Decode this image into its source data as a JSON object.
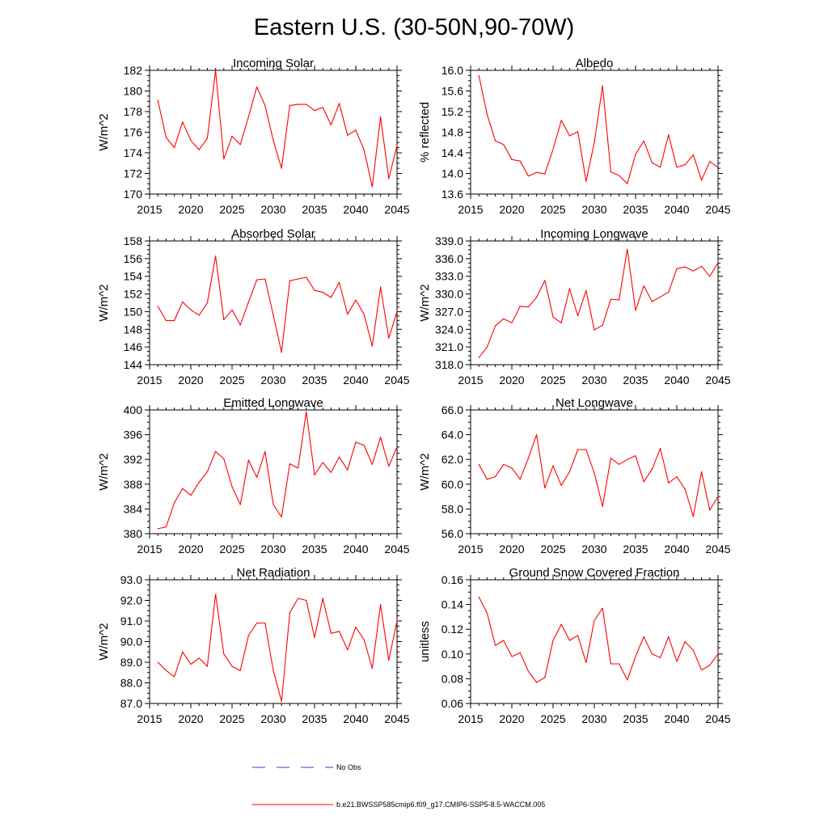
{
  "figure_title": "Eastern U.S. (30-50N,90-70W)",
  "legend": {
    "obs_label": "No Obs",
    "obs_color": "#3a3ad6",
    "model_label": "b.e21.BWSSP585cmip6.f09_g17.CMIP6-SSP5-8.5-WACCM.005",
    "model_color": "#ff0000"
  },
  "chart_data": [
    {
      "type": "line",
      "title": "Incoming Solar",
      "xlabel": "",
      "ylabel": "W/m^2",
      "xlim": [
        2015,
        2045
      ],
      "ylim": [
        170,
        182
      ],
      "xticks": [
        2015,
        2020,
        2025,
        2030,
        2035,
        2040,
        2045
      ],
      "yticks": [
        "170",
        "172",
        "174",
        "176",
        "178",
        "180",
        "182"
      ],
      "x": [
        2016,
        2017,
        2018,
        2019,
        2020,
        2021,
        2022,
        2023,
        2024,
        2025,
        2026,
        2027,
        2028,
        2029,
        2030,
        2031,
        2032,
        2033,
        2034,
        2035,
        2036,
        2037,
        2038,
        2039,
        2040,
        2041,
        2042,
        2043,
        2044,
        2045
      ],
      "series": [
        {
          "name": "b.e21.BWSSP585cmip6.f09_g17.CMIP6-SSP5-8.5-WACCM.005",
          "values": [
            179.1,
            175.5,
            174.5,
            177.0,
            175.2,
            174.3,
            175.4,
            182.0,
            173.4,
            175.6,
            174.8,
            177.5,
            180.4,
            178.6,
            175.2,
            172.5,
            178.6,
            178.7,
            178.7,
            178.1,
            178.4,
            176.7,
            178.8,
            175.7,
            176.2,
            174.3,
            170.7,
            177.5,
            171.5,
            174.7
          ]
        }
      ]
    },
    {
      "type": "line",
      "title": "Albedo",
      "xlabel": "",
      "ylabel": "% reflected",
      "xlim": [
        2015,
        2045
      ],
      "ylim": [
        13.6,
        16.0
      ],
      "xticks": [
        2015,
        2020,
        2025,
        2030,
        2035,
        2040,
        2045
      ],
      "yticks": [
        "13.6",
        "14.0",
        "14.4",
        "14.8",
        "15.2",
        "15.6",
        "16.0"
      ],
      "x": [
        2016,
        2017,
        2018,
        2019,
        2020,
        2021,
        2022,
        2023,
        2024,
        2025,
        2026,
        2027,
        2028,
        2029,
        2030,
        2031,
        2032,
        2033,
        2034,
        2035,
        2036,
        2037,
        2038,
        2039,
        2040,
        2041,
        2042,
        2043,
        2044,
        2045
      ],
      "series": [
        {
          "name": "b.e21.BWSSP585cmip6.f09_g17.CMIP6-SSP5-8.5-WACCM.005",
          "values": [
            15.9,
            15.15,
            14.63,
            14.56,
            14.27,
            14.24,
            13.95,
            14.02,
            13.99,
            14.47,
            15.03,
            14.73,
            14.81,
            13.85,
            14.6,
            15.7,
            14.03,
            13.96,
            13.8,
            14.37,
            14.63,
            14.21,
            14.12,
            14.75,
            14.12,
            14.17,
            14.36,
            13.87,
            14.23,
            14.12
          ]
        }
      ]
    },
    {
      "type": "line",
      "title": "Absorbed Solar",
      "xlabel": "",
      "ylabel": "W/m^2",
      "xlim": [
        2015,
        2045
      ],
      "ylim": [
        144,
        158
      ],
      "xticks": [
        2015,
        2020,
        2025,
        2030,
        2035,
        2040,
        2045
      ],
      "yticks": [
        "144",
        "146",
        "148",
        "150",
        "152",
        "154",
        "156",
        "158"
      ],
      "x": [
        2016,
        2017,
        2018,
        2019,
        2020,
        2021,
        2022,
        2023,
        2024,
        2025,
        2026,
        2027,
        2028,
        2029,
        2030,
        2031,
        2032,
        2033,
        2034,
        2035,
        2036,
        2037,
        2038,
        2039,
        2040,
        2041,
        2042,
        2043,
        2044,
        2045
      ],
      "series": [
        {
          "name": "b.e21.BWSSP585cmip6.f09_g17.CMIP6-SSP5-8.5-WACCM.005",
          "values": [
            150.6,
            149.0,
            149.0,
            151.1,
            150.2,
            149.6,
            151.0,
            156.3,
            149.1,
            150.2,
            148.5,
            151.1,
            153.6,
            153.7,
            149.6,
            145.4,
            153.5,
            153.7,
            153.9,
            152.4,
            152.2,
            151.6,
            153.3,
            149.7,
            151.3,
            149.7,
            146.1,
            152.8,
            147.0,
            150.0
          ]
        }
      ]
    },
    {
      "type": "line",
      "title": "Incoming Longwave",
      "xlabel": "",
      "ylabel": "W/m^2",
      "xlim": [
        2015,
        2045
      ],
      "ylim": [
        318.0,
        339.0
      ],
      "xticks": [
        2015,
        2020,
        2025,
        2030,
        2035,
        2040,
        2045
      ],
      "yticks": [
        "318.0",
        "321.0",
        "324.0",
        "327.0",
        "330.0",
        "333.0",
        "336.0",
        "339.0"
      ],
      "x": [
        2016,
        2017,
        2018,
        2019,
        2020,
        2021,
        2022,
        2023,
        2024,
        2025,
        2026,
        2027,
        2028,
        2029,
        2030,
        2031,
        2032,
        2033,
        2034,
        2035,
        2036,
        2037,
        2038,
        2039,
        2040,
        2041,
        2042,
        2043,
        2044,
        2045
      ],
      "series": [
        {
          "name": "b.e21.BWSSP585cmip6.f09_g17.CMIP6-SSP5-8.5-WACCM.005",
          "values": [
            319.2,
            321.0,
            324.6,
            325.8,
            325.1,
            327.9,
            327.8,
            329.4,
            332.3,
            326.1,
            325.1,
            330.9,
            326.3,
            330.6,
            323.9,
            324.7,
            329.1,
            329.0,
            337.6,
            327.2,
            331.4,
            328.7,
            329.5,
            330.3,
            334.3,
            334.6,
            333.9,
            334.7,
            333.0,
            335.3
          ]
        }
      ]
    },
    {
      "type": "line",
      "title": "Emitted Longwave",
      "xlabel": "",
      "ylabel": "W/m^2",
      "xlim": [
        2015,
        2045
      ],
      "ylim": [
        380,
        400
      ],
      "xticks": [
        2015,
        2020,
        2025,
        2030,
        2035,
        2040,
        2045
      ],
      "yticks": [
        "380",
        "384",
        "388",
        "392",
        "396",
        "400"
      ],
      "x": [
        2016,
        2017,
        2018,
        2019,
        2020,
        2021,
        2022,
        2023,
        2024,
        2025,
        2026,
        2027,
        2028,
        2029,
        2030,
        2031,
        2032,
        2033,
        2034,
        2035,
        2036,
        2037,
        2038,
        2039,
        2040,
        2041,
        2042,
        2043,
        2044,
        2045
      ],
      "series": [
        {
          "name": "b.e21.BWSSP585cmip6.f09_g17.CMIP6-SSP5-8.5-WACCM.005",
          "values": [
            380.8,
            381.1,
            385.0,
            387.3,
            386.2,
            388.3,
            390.0,
            393.3,
            392.1,
            387.6,
            384.7,
            391.9,
            389.1,
            393.3,
            384.7,
            382.7,
            391.3,
            390.6,
            399.7,
            389.5,
            391.5,
            389.9,
            392.4,
            390.3,
            394.8,
            394.3,
            391.2,
            395.6,
            390.9,
            394.0
          ]
        }
      ]
    },
    {
      "type": "line",
      "title": "Net Longwave",
      "xlabel": "",
      "ylabel": "W/m^2",
      "xlim": [
        2015,
        2045
      ],
      "ylim": [
        56.0,
        66.0
      ],
      "xticks": [
        2015,
        2020,
        2025,
        2030,
        2035,
        2040,
        2045
      ],
      "yticks": [
        "56.0",
        "58.0",
        "60.0",
        "62.0",
        "64.0",
        "66.0"
      ],
      "x": [
        2016,
        2017,
        2018,
        2019,
        2020,
        2021,
        2022,
        2023,
        2024,
        2025,
        2026,
        2027,
        2028,
        2029,
        2030,
        2031,
        2032,
        2033,
        2034,
        2035,
        2036,
        2037,
        2038,
        2039,
        2040,
        2041,
        2042,
        2043,
        2044,
        2045
      ],
      "series": [
        {
          "name": "b.e21.BWSSP585cmip6.f09_g17.CMIP6-SSP5-8.5-WACCM.005",
          "values": [
            61.6,
            60.4,
            60.6,
            61.6,
            61.3,
            60.4,
            62.1,
            64.0,
            59.7,
            61.5,
            59.9,
            61.0,
            62.8,
            62.8,
            60.9,
            58.2,
            62.1,
            61.6,
            62.0,
            62.3,
            60.2,
            61.2,
            62.9,
            60.1,
            60.6,
            59.6,
            57.4,
            61.0,
            57.9,
            59.0
          ]
        }
      ]
    },
    {
      "type": "line",
      "title": "Net Radiation",
      "xlabel": "",
      "ylabel": "W/m^2",
      "xlim": [
        2015,
        2045
      ],
      "ylim": [
        87.0,
        93.0
      ],
      "xticks": [
        2015,
        2020,
        2025,
        2030,
        2035,
        2040,
        2045
      ],
      "yticks": [
        "87.0",
        "88.0",
        "89.0",
        "90.0",
        "91.0",
        "92.0",
        "93.0"
      ],
      "x": [
        2016,
        2017,
        2018,
        2019,
        2020,
        2021,
        2022,
        2023,
        2024,
        2025,
        2026,
        2027,
        2028,
        2029,
        2030,
        2031,
        2032,
        2033,
        2034,
        2035,
        2036,
        2037,
        2038,
        2039,
        2040,
        2041,
        2042,
        2043,
        2044,
        2045
      ],
      "series": [
        {
          "name": "b.e21.BWSSP585cmip6.f09_g17.CMIP6-SSP5-8.5-WACCM.005",
          "values": [
            89.0,
            88.6,
            88.3,
            89.5,
            88.9,
            89.2,
            88.8,
            92.3,
            89.4,
            88.8,
            88.6,
            90.3,
            90.9,
            90.9,
            88.6,
            87.1,
            91.4,
            92.1,
            92.0,
            90.2,
            92.1,
            90.4,
            90.5,
            89.6,
            90.7,
            90.1,
            88.7,
            91.8,
            89.1,
            91.0
          ]
        }
      ]
    },
    {
      "type": "line",
      "title": "Ground Snow Covered Fraction",
      "xlabel": "",
      "ylabel": "unitless",
      "xlim": [
        2015,
        2045
      ],
      "ylim": [
        0.06,
        0.16
      ],
      "xticks": [
        2015,
        2020,
        2025,
        2030,
        2035,
        2040,
        2045
      ],
      "yticks": [
        "0.06",
        "0.08",
        "0.10",
        "0.12",
        "0.14",
        "0.16"
      ],
      "x": [
        2016,
        2017,
        2018,
        2019,
        2020,
        2021,
        2022,
        2023,
        2024,
        2025,
        2026,
        2027,
        2028,
        2029,
        2030,
        2031,
        2032,
        2033,
        2034,
        2035,
        2036,
        2037,
        2038,
        2039,
        2040,
        2041,
        2042,
        2043,
        2044,
        2045
      ],
      "series": [
        {
          "name": "b.e21.BWSSP585cmip6.f09_g17.CMIP6-SSP5-8.5-WACCM.005",
          "values": [
            0.146,
            0.133,
            0.107,
            0.111,
            0.098,
            0.101,
            0.086,
            0.077,
            0.081,
            0.111,
            0.124,
            0.111,
            0.115,
            0.093,
            0.127,
            0.137,
            0.092,
            0.092,
            0.079,
            0.098,
            0.114,
            0.1,
            0.097,
            0.114,
            0.094,
            0.11,
            0.103,
            0.087,
            0.091,
            0.1
          ]
        }
      ]
    }
  ]
}
